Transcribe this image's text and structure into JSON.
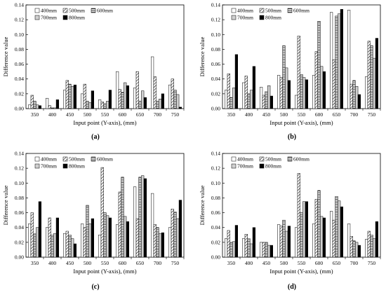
{
  "figure": {
    "axis_labels": {
      "x": "Input point (Y-axis), (mm)",
      "y": "Difference value"
    }
  },
  "series_style": [
    {
      "name": "400mm",
      "fill": "white"
    },
    {
      "name": "500mm",
      "fill": "diagonal-hatch"
    },
    {
      "name": "600mm",
      "fill": "horizontal-lines"
    },
    {
      "name": "700mm",
      "fill": "light-gray"
    },
    {
      "name": "800mm",
      "fill": "black"
    }
  ],
  "colors": {
    "bar_stroke": "#000000",
    "gray": "#d0d0d0",
    "black": "#000000",
    "background": "#ffffff"
  },
  "chart_data": [
    {
      "type": "bar",
      "caption": "(a)",
      "categories": [
        "350",
        "400",
        "450",
        "500",
        "550",
        "600",
        "650",
        "700",
        "750"
      ],
      "xlabel": "Input point (Y-axis), (mm)",
      "ylabel": "Difference value",
      "ylim": [
        0,
        0.14
      ],
      "yticks": [
        "0.00",
        "0.02",
        "0.04",
        "0.06",
        "0.08",
        "0.10",
        "0.12",
        "0.14"
      ],
      "legend": "top",
      "grid": false,
      "series": [
        {
          "name": "400mm",
          "values": [
            0.005,
            0.014,
            0.025,
            0.02,
            0.012,
            0.05,
            0.028,
            0.07,
            0.032
          ]
        },
        {
          "name": "500mm",
          "values": [
            0.018,
            0.004,
            0.038,
            0.033,
            0.009,
            0.026,
            0.05,
            0.043,
            0.04
          ]
        },
        {
          "name": "600mm",
          "values": [
            0.01,
            0.001,
            0.033,
            0.01,
            0.007,
            0.022,
            0.01,
            0.01,
            0.025
          ]
        },
        {
          "name": "700mm",
          "values": [
            0.005,
            0.001,
            0.03,
            0.008,
            0.01,
            0.035,
            0.024,
            0.013,
            0.019
          ]
        },
        {
          "name": "800mm",
          "values": [
            0.004,
            0.012,
            0.032,
            0.024,
            0.025,
            0.031,
            0.015,
            0.02,
            0.002
          ]
        }
      ]
    },
    {
      "type": "bar",
      "caption": "(b)",
      "categories": [
        "350",
        "400",
        "450",
        "500",
        "550",
        "600",
        "650",
        "700",
        "750"
      ],
      "xlabel": "Input point (Y-axis), (mm)",
      "ylabel": "Difference value",
      "ylim": [
        0,
        0.14
      ],
      "yticks": [
        "0.00",
        "0.02",
        "0.04",
        "0.06",
        "0.08",
        "0.10",
        "0.12",
        "0.14"
      ],
      "legend": "top",
      "grid": false,
      "series": [
        {
          "name": "400mm",
          "values": [
            0.025,
            0.035,
            0.029,
            0.045,
            0.018,
            0.045,
            0.13,
            0.133,
            0.043
          ]
        },
        {
          "name": "500mm",
          "values": [
            0.047,
            0.044,
            0.018,
            0.042,
            0.098,
            0.077,
            0.066,
            0.033,
            0.091
          ]
        },
        {
          "name": "600mm",
          "values": [
            0.015,
            0.02,
            0.023,
            0.085,
            0.046,
            0.118,
            0.125,
            0.038,
            0.085
          ]
        },
        {
          "name": "700mm",
          "values": [
            0.028,
            0.025,
            0.031,
            0.055,
            0.042,
            0.057,
            0.128,
            0.03,
            0.068
          ]
        },
        {
          "name": "800mm",
          "values": [
            0.073,
            0.057,
            0.017,
            0.038,
            0.039,
            0.05,
            0.134,
            0.019,
            0.095
          ]
        }
      ]
    },
    {
      "type": "bar",
      "caption": "(c)",
      "categories": [
        "350",
        "400",
        "450",
        "500",
        "550",
        "600",
        "650",
        "700",
        "750"
      ],
      "xlabel": "Input point (Y-axis), (mm)",
      "ylabel": "Difference value",
      "ylim": [
        0,
        0.14
      ],
      "yticks": [
        "0.00",
        "0.02",
        "0.04",
        "0.06",
        "0.08",
        "0.10",
        "0.12",
        "0.14"
      ],
      "legend": "top",
      "grid": false,
      "series": [
        {
          "name": "400mm",
          "values": [
            0.045,
            0.04,
            0.032,
            0.045,
            0.03,
            0.044,
            0.095,
            0.086,
            0.04
          ]
        },
        {
          "name": "500mm",
          "values": [
            0.06,
            0.053,
            0.035,
            0.04,
            0.121,
            0.088,
            0.052,
            0.044,
            0.065
          ]
        },
        {
          "name": "600mm",
          "values": [
            0.032,
            0.03,
            0.03,
            0.07,
            0.06,
            0.108,
            0.108,
            0.04,
            0.061
          ]
        },
        {
          "name": "700mm",
          "values": [
            0.04,
            0.032,
            0.025,
            0.045,
            0.056,
            0.055,
            0.11,
            0.032,
            0.052
          ]
        },
        {
          "name": "800mm",
          "values": [
            0.075,
            0.053,
            0.018,
            0.052,
            0.053,
            0.048,
            0.106,
            0.033,
            0.077
          ]
        }
      ]
    },
    {
      "type": "bar",
      "caption": "(d)",
      "categories": [
        "350",
        "400",
        "450",
        "500",
        "550",
        "600",
        "650",
        "700",
        "750"
      ],
      "xlabel": "Input point (Y-axis), (mm)",
      "ylabel": "Difference value",
      "ylim": [
        0,
        0.14
      ],
      "yticks": [
        "0.00",
        "0.02",
        "0.04",
        "0.06",
        "0.08",
        "0.10",
        "0.12",
        "0.14"
      ],
      "legend": "top",
      "grid": false,
      "series": [
        {
          "name": "400mm",
          "values": [
            0.025,
            0.025,
            0.02,
            0.044,
            0.04,
            0.045,
            0.062,
            0.045,
            0.024
          ]
        },
        {
          "name": "500mm",
          "values": [
            0.036,
            0.031,
            0.02,
            0.042,
            0.113,
            0.078,
            0.05,
            0.028,
            0.035
          ]
        },
        {
          "name": "600mm",
          "values": [
            0.02,
            0.025,
            0.02,
            0.05,
            0.06,
            0.09,
            0.082,
            0.022,
            0.03
          ]
        },
        {
          "name": "700mm",
          "values": [
            0.021,
            0.018,
            0.016,
            0.035,
            0.075,
            0.055,
            0.076,
            0.02,
            0.025
          ]
        },
        {
          "name": "800mm",
          "values": [
            0.043,
            0.04,
            0.016,
            0.042,
            0.075,
            0.053,
            0.068,
            0.016,
            0.048
          ]
        }
      ]
    }
  ]
}
